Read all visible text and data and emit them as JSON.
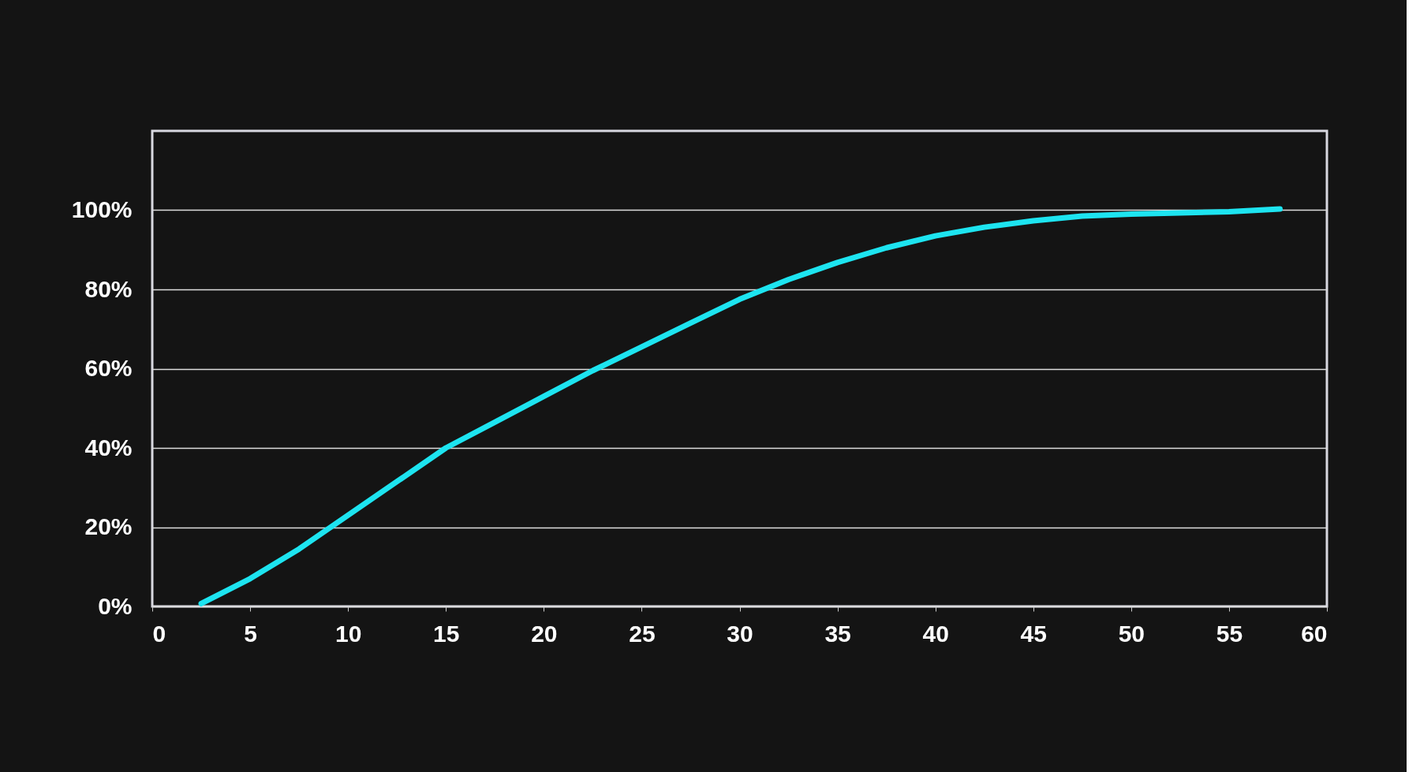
{
  "chart_data": {
    "type": "line",
    "x": [
      2.5,
      5,
      7.5,
      10,
      12.5,
      15,
      17.5,
      20,
      22.5,
      25,
      27.5,
      30,
      32.5,
      35,
      37.5,
      40,
      42.5,
      45,
      47.5,
      50,
      52.5,
      55,
      57.6
    ],
    "series": [
      {
        "color": "#1de4f0",
        "values": [
          0.7,
          7,
          14.5,
          23,
          31.5,
          40,
          46.5,
          53,
          59.5,
          65.5,
          71.5,
          77.5,
          82.5,
          86.8,
          90.5,
          93.5,
          95.7,
          97.3,
          98.5,
          99,
          99.3,
          99.6,
          100.3
        ]
      }
    ],
    "xlim": [
      0,
      60
    ],
    "xticks": [
      0,
      5,
      10,
      15,
      20,
      25,
      30,
      35,
      40,
      45,
      50,
      55,
      60
    ],
    "ylim": [
      0,
      120
    ],
    "yticks": [
      {
        "value": 0,
        "label": "0%"
      },
      {
        "value": 20,
        "label": "20%"
      },
      {
        "value": 40,
        "label": "40%"
      },
      {
        "value": 60,
        "label": "60%"
      },
      {
        "value": 80,
        "label": "80%"
      },
      {
        "value": 100,
        "label": "100%"
      }
    ],
    "grid": "y",
    "line_style": "solid"
  }
}
